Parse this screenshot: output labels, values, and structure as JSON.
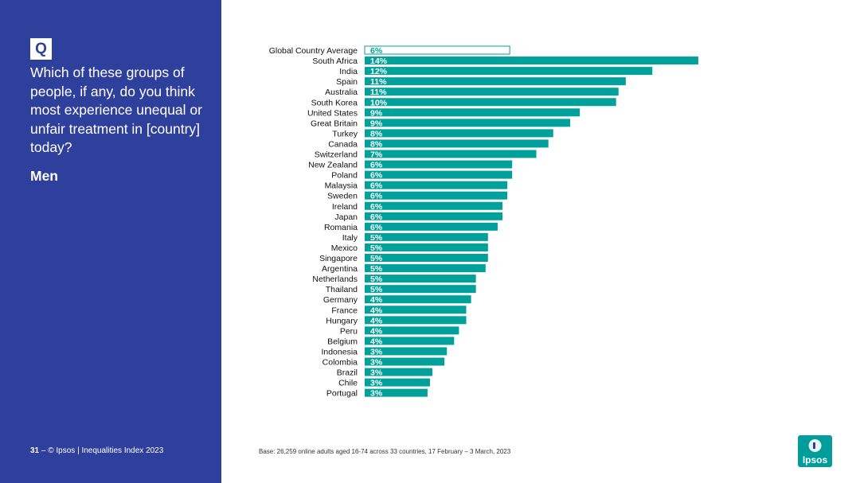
{
  "sidebar": {
    "badge": "Q",
    "question": "Which of these groups of people, if any, do you think most experience unequal or unfair treatment in [country] today?",
    "subgroup": "Men",
    "page_number": "31",
    "copyright": "© Ipsos | Inequalities Index 2023",
    "background_color": "#2E3F9C"
  },
  "base_note": "Base: 26,259 online adults aged 16-74 across 33 countries, 17 February – 3 March, 2023",
  "logo": {
    "text": "Ipsos",
    "color": "#009D9A",
    "icon": "ipsos-logo-icon"
  },
  "chart_data": {
    "type": "bar",
    "orientation": "horizontal",
    "bar_color": "#00A19A",
    "highlight_style": "outlined",
    "categories": [
      "Global Country Average",
      "South Africa",
      "India",
      "Spain",
      "Australia",
      "South Korea",
      "United States",
      "Great Britain",
      "Turkey",
      "Canada",
      "Switzerland",
      "New Zealand",
      "Poland",
      "Malaysia",
      "Sweden",
      "Ireland",
      "Japan",
      "Romania",
      "Italy",
      "Mexico",
      "Singapore",
      "Argentina",
      "Netherlands",
      "Thailand",
      "Germany",
      "France",
      "Hungary",
      "Peru",
      "Belgium",
      "Indonesia",
      "Colombia",
      "Brazil",
      "Chile",
      "Portugal"
    ],
    "values": [
      6.0,
      13.8,
      11.9,
      10.8,
      10.5,
      10.4,
      8.9,
      8.5,
      7.8,
      7.6,
      7.1,
      6.1,
      6.1,
      5.9,
      5.9,
      5.7,
      5.7,
      5.5,
      5.1,
      5.1,
      5.1,
      5.0,
      4.6,
      4.6,
      4.4,
      4.2,
      4.2,
      3.9,
      3.7,
      3.4,
      3.3,
      2.8,
      2.7,
      2.6
    ],
    "labels": [
      "6%",
      "14%",
      "12%",
      "11%",
      "11%",
      "10%",
      "9%",
      "9%",
      "8%",
      "8%",
      "7%",
      "6%",
      "6%",
      "6%",
      "6%",
      "6%",
      "6%",
      "6%",
      "5%",
      "5%",
      "5%",
      "5%",
      "5%",
      "5%",
      "4%",
      "4%",
      "4%",
      "4%",
      "4%",
      "3%",
      "3%",
      "3%",
      "3%",
      "3%"
    ],
    "xlim": [
      0,
      14
    ],
    "grid": false,
    "legend": "none"
  }
}
